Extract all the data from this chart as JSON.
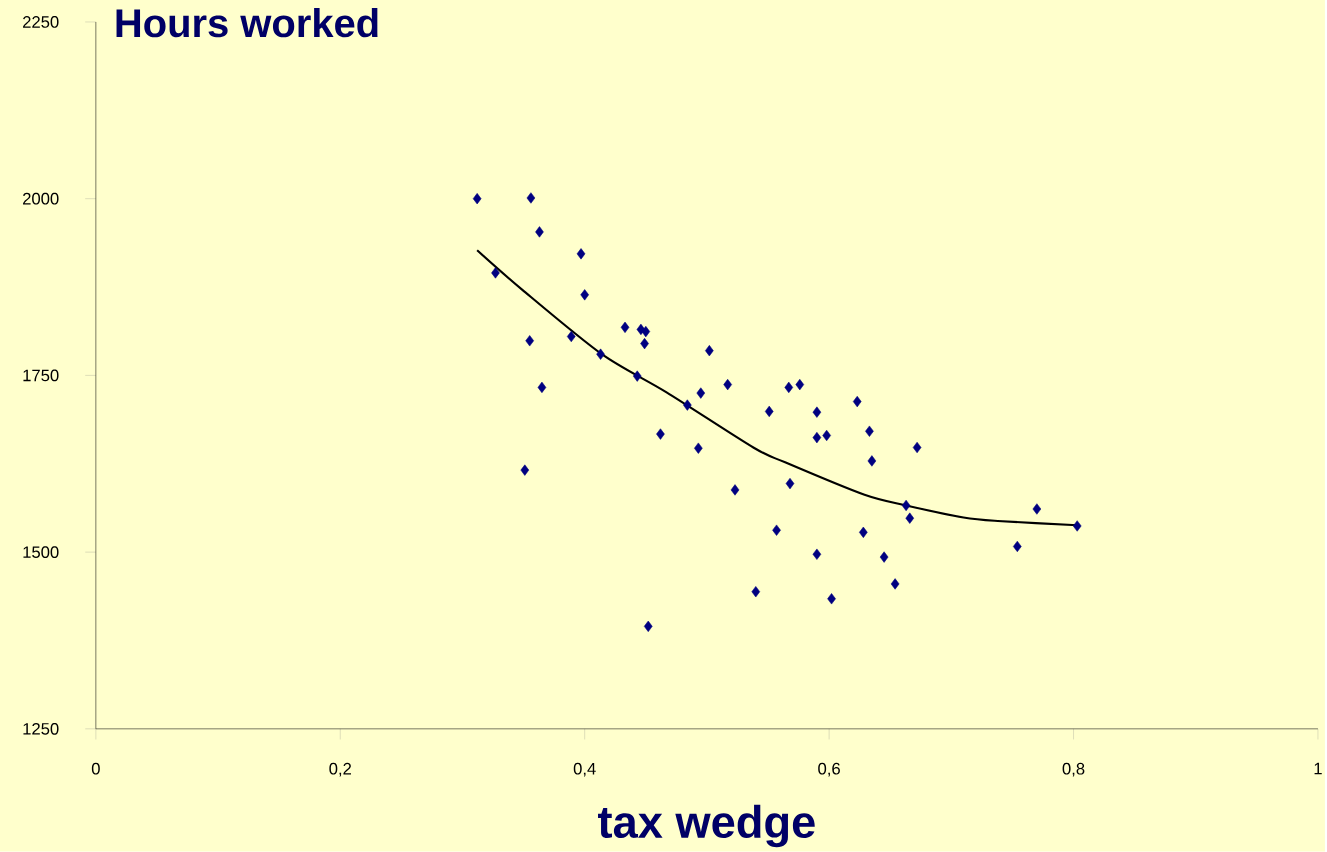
{
  "chart_data": {
    "type": "scatter",
    "title": "Hours worked",
    "xlabel": "tax wedge",
    "xlim": [
      0,
      1
    ],
    "ylim": [
      1250,
      2250
    ],
    "xticks": [
      0,
      {
        "value": 0.2,
        "label": "0,2"
      },
      {
        "value": 0.4,
        "label": "0,4"
      },
      {
        "value": 0.6,
        "label": "0,6"
      },
      {
        "value": 0.8,
        "label": "0,8"
      },
      1
    ],
    "yticks": [
      1250,
      1500,
      1750,
      2000,
      2250
    ],
    "grid": false,
    "marker": "diamond",
    "series": [
      {
        "color": "#000080",
        "x": [
          0.312,
          0.356,
          0.363,
          0.397,
          0.327,
          0.4,
          0.355,
          0.389,
          0.413,
          0.433,
          0.446,
          0.45,
          0.449,
          0.502,
          0.443,
          0.365,
          0.517,
          0.495,
          0.484,
          0.462,
          0.493,
          0.351,
          0.523,
          0.452,
          0.567,
          0.576,
          0.551,
          0.59,
          0.623,
          0.59,
          0.598,
          0.633,
          0.672,
          0.635,
          0.568,
          0.557,
          0.628,
          0.663,
          0.666,
          0.77,
          0.59,
          0.645,
          0.754,
          0.803,
          0.54,
          0.602,
          0.654
        ],
        "values": [
          2000,
          2001,
          1953,
          1922,
          1895,
          1864,
          1799,
          1805,
          1780,
          1818,
          1815,
          1812,
          1795,
          1785,
          1749,
          1733,
          1737,
          1725,
          1708,
          1667,
          1647,
          1616,
          1588,
          1395,
          1733,
          1737,
          1699,
          1698,
          1713,
          1662,
          1665,
          1671,
          1648,
          1629,
          1597,
          1531,
          1528,
          1566,
          1548,
          1561,
          1497,
          1493,
          1508,
          1537,
          1444,
          1434,
          1455
        ]
      },
      {
        "type": "line",
        "marker": "none",
        "color": "#000000",
        "x": [
          0.312,
          0.349,
          0.414,
          0.467,
          0.538,
          0.564,
          0.629,
          0.663,
          0.71,
          0.738,
          0.803
        ],
        "values": [
          1927,
          1871,
          1780,
          1726,
          1648,
          1627,
          1581,
          1566,
          1549,
          1544,
          1538
        ]
      }
    ]
  }
}
